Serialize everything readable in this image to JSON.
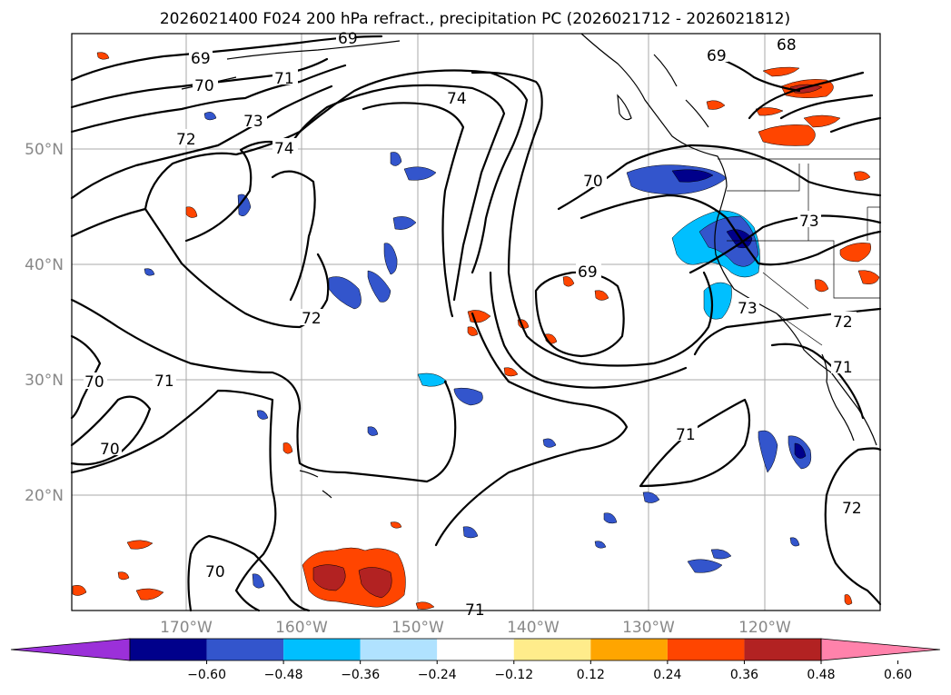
{
  "title": "2026021400 F024 200 hPa refract., precipitation PC (2026021712 - 2026021812)",
  "lat_labels": [
    "50°N",
    "40°N",
    "30°N",
    "20°N"
  ],
  "lon_labels": [
    "170°W",
    "160°W",
    "150°W",
    "140°W",
    "130°W",
    "120°W"
  ],
  "colorbar": {
    "ticks": [
      "−0.60",
      "−0.48",
      "−0.36",
      "−0.24",
      "−0.12",
      "0.12",
      "0.24",
      "0.36",
      "0.48",
      "0.60"
    ],
    "colors": [
      "#9b30d9",
      "#00008b",
      "#3355cc",
      "#00bfff",
      "#b0e2ff",
      "#ffffff",
      "#ffec8b",
      "#ffa500",
      "#ff4500",
      "#b22222",
      "#ff82ab"
    ]
  },
  "contour_labels": [
    "69",
    "70",
    "71",
    "72",
    "73",
    "74",
    "68"
  ],
  "colors": {
    "grid": "#aaaaaa",
    "axis_text": "#888888"
  }
}
